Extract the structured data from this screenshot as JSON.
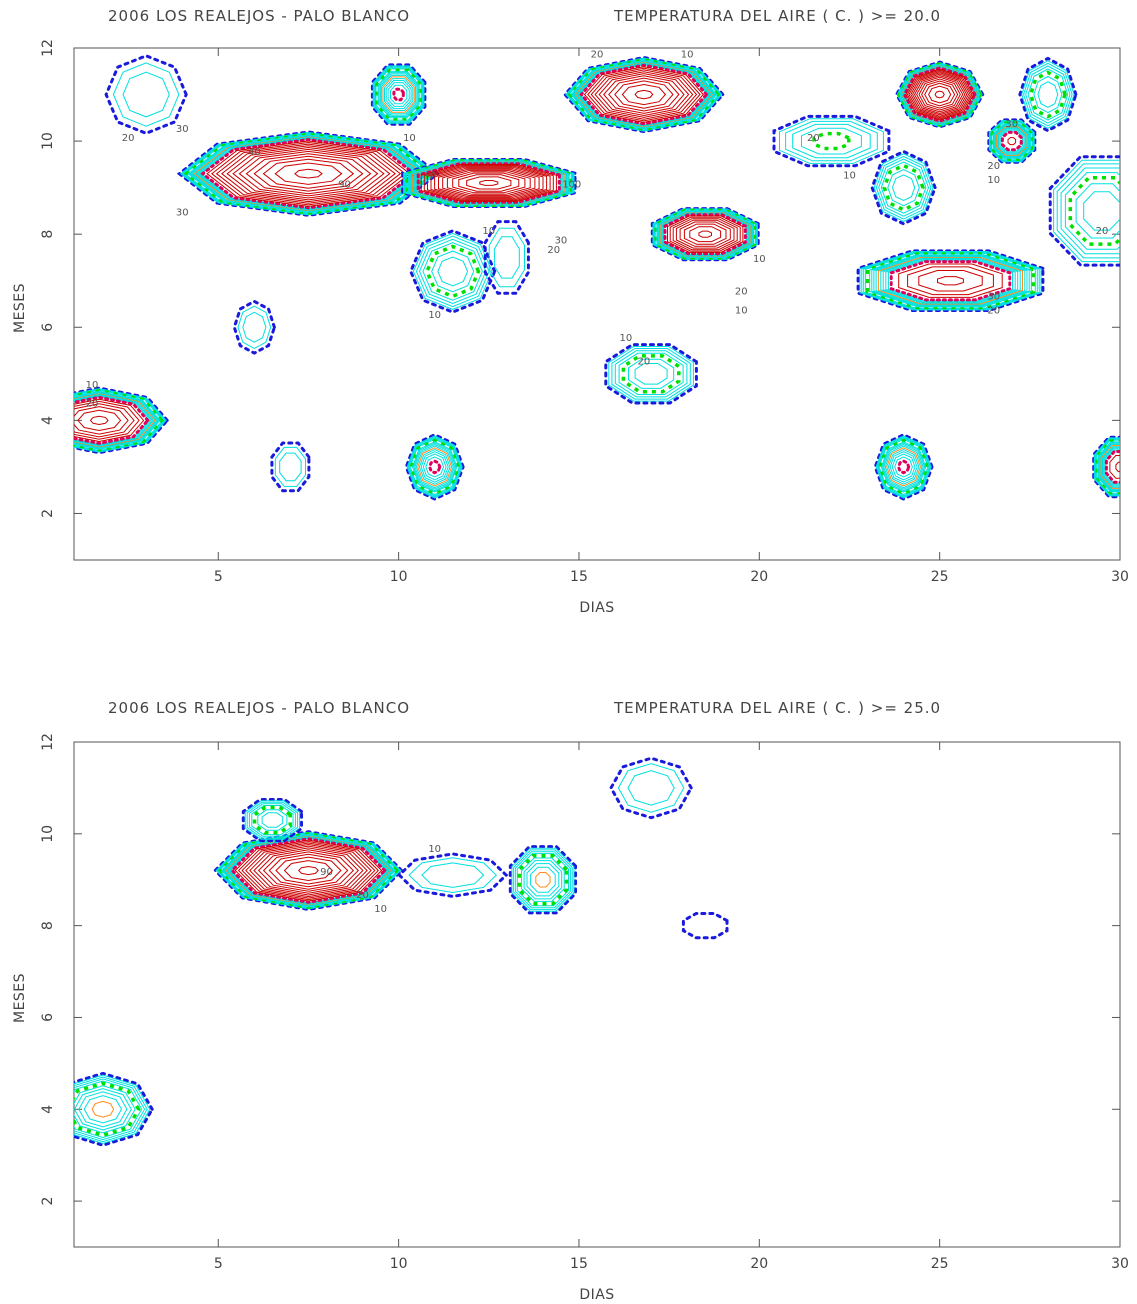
{
  "chart_data": [
    {
      "type": "contour",
      "title_left": "2006 LOS REALEJOS - PALO BLANCO",
      "title_right": "TEMPERATURA DEL AIRE (  C. )  >=  20.0",
      "xlabel": "DIAS",
      "ylabel": "MESES",
      "xlim": [
        1,
        30
      ],
      "ylim": [
        1,
        12
      ],
      "xticks": [
        5,
        10,
        15,
        20,
        25,
        30
      ],
      "yticks": [
        2,
        4,
        6,
        8,
        10,
        12
      ],
      "level_colors": {
        "10": "#1a1adc",
        "20": "#00e000",
        "30": "#ff8c1a",
        "40": "#e0005a",
        "outer": "#00e0e0",
        "inner": "#cc0000"
      },
      "peaks": [
        {
          "day": 7.5,
          "month": 9.3,
          "rx": 3.6,
          "ry": 0.9,
          "max": 100
        },
        {
          "day": 12.5,
          "month": 9.1,
          "rx": 2.6,
          "ry": 0.55,
          "max": 100
        },
        {
          "day": 16.8,
          "month": 11.0,
          "rx": 2.2,
          "ry": 0.8,
          "max": 90
        },
        {
          "day": 18.5,
          "month": 8.0,
          "rx": 1.6,
          "ry": 0.6,
          "max": 80
        },
        {
          "day": 25.0,
          "month": 11.0,
          "rx": 1.2,
          "ry": 0.7,
          "max": 100
        },
        {
          "day": 25.3,
          "month": 7.0,
          "rx": 2.8,
          "ry": 0.7,
          "max": 60
        },
        {
          "day": 1.7,
          "month": 4.0,
          "rx": 1.9,
          "ry": 0.7,
          "max": 70
        },
        {
          "day": 22.0,
          "month": 10.0,
          "rx": 1.8,
          "ry": 0.6,
          "max": 20
        },
        {
          "day": 3.0,
          "month": 11.0,
          "rx": 1.2,
          "ry": 0.9,
          "max": 15
        },
        {
          "day": 10.0,
          "month": 11.0,
          "rx": 0.8,
          "ry": 0.7,
          "max": 40
        },
        {
          "day": 6.0,
          "month": 6.0,
          "rx": 0.6,
          "ry": 0.6,
          "max": 15
        },
        {
          "day": 7.0,
          "month": 3.0,
          "rx": 0.6,
          "ry": 0.6,
          "max": 15
        },
        {
          "day": 11.0,
          "month": 3.0,
          "rx": 0.8,
          "ry": 0.7,
          "max": 40
        },
        {
          "day": 17.0,
          "month": 5.0,
          "rx": 1.4,
          "ry": 0.7,
          "max": 25
        },
        {
          "day": 24.0,
          "month": 3.0,
          "rx": 0.8,
          "ry": 0.7,
          "max": 40
        },
        {
          "day": 30.0,
          "month": 3.0,
          "rx": 0.8,
          "ry": 0.7,
          "max": 50
        },
        {
          "day": 24.0,
          "month": 9.0,
          "rx": 0.9,
          "ry": 0.8,
          "max": 25
        },
        {
          "day": 29.5,
          "month": 8.5,
          "rx": 1.6,
          "ry": 1.3,
          "max": 25
        },
        {
          "day": 28.0,
          "month": 11.0,
          "rx": 0.8,
          "ry": 0.8,
          "max": 25
        },
        {
          "day": 27.0,
          "month": 10.0,
          "rx": 0.7,
          "ry": 0.5,
          "max": 45
        },
        {
          "day": 11.5,
          "month": 7.2,
          "rx": 1.2,
          "ry": 0.9,
          "max": 25
        },
        {
          "day": 13.0,
          "month": 7.5,
          "rx": 0.7,
          "ry": 0.9,
          "max": 15
        }
      ],
      "contour_labels": [
        {
          "text": "10",
          "day": 10.3,
          "month": 10.0
        },
        {
          "text": "20",
          "day": 2.5,
          "month": 10.0
        },
        {
          "text": "30",
          "day": 4.0,
          "month": 10.2
        },
        {
          "text": "40",
          "day": 6.0,
          "month": 9.7
        },
        {
          "text": "90",
          "day": 8.5,
          "month": 9.0
        },
        {
          "text": "100",
          "day": 14.8,
          "month": 9.0
        },
        {
          "text": "10",
          "day": 18.0,
          "month": 11.8
        },
        {
          "text": "20",
          "day": 15.5,
          "month": 11.8
        },
        {
          "text": "20",
          "day": 21.5,
          "month": 10.0
        },
        {
          "text": "10",
          "day": 22.5,
          "month": 9.2
        },
        {
          "text": "30",
          "day": 27.0,
          "month": 10.3
        },
        {
          "text": "20",
          "day": 26.5,
          "month": 9.4
        },
        {
          "text": "10",
          "day": 26.5,
          "month": 9.1
        },
        {
          "text": "30",
          "day": 14.5,
          "month": 7.8
        },
        {
          "text": "20",
          "day": 14.3,
          "month": 7.6
        },
        {
          "text": "10",
          "day": 12.5,
          "month": 8.0
        },
        {
          "text": "10",
          "day": 20.0,
          "month": 7.4
        },
        {
          "text": "10",
          "day": 19.5,
          "month": 6.3
        },
        {
          "text": "20",
          "day": 19.5,
          "month": 6.7
        },
        {
          "text": "10",
          "day": 16.3,
          "month": 5.7
        },
        {
          "text": "20",
          "day": 16.8,
          "month": 5.2
        },
        {
          "text": "20",
          "day": 1.5,
          "month": 4.3
        },
        {
          "text": "10",
          "day": 1.5,
          "month": 4.7
        },
        {
          "text": "30",
          "day": 4.0,
          "month": 8.4
        },
        {
          "text": "20",
          "day": 29.5,
          "month": 8.0
        },
        {
          "text": "10",
          "day": 11.0,
          "month": 6.2
        },
        {
          "text": "30",
          "day": 26.5,
          "month": 6.6
        },
        {
          "text": "20",
          "day": 26.5,
          "month": 6.3
        }
      ]
    },
    {
      "type": "contour",
      "title_left": "2006 LOS REALEJOS - PALO BLANCO",
      "title_right": "TEMPERATURA DEL AIRE (  C. )  >=  25.0",
      "xlabel": "DIAS",
      "ylabel": "MESES",
      "xlim": [
        1,
        30
      ],
      "ylim": [
        1,
        12
      ],
      "xticks": [
        5,
        10,
        15,
        20,
        25,
        30
      ],
      "yticks": [
        2,
        4,
        6,
        8,
        10,
        12
      ],
      "level_colors": {
        "10": "#1a1adc",
        "20": "#00e000",
        "30": "#ff8c1a",
        "40": "#e0005a",
        "outer": "#00e0e0",
        "inner": "#cc0000"
      },
      "peaks": [
        {
          "day": 7.5,
          "month": 9.2,
          "rx": 2.6,
          "ry": 0.85,
          "max": 100
        },
        {
          "day": 6.5,
          "month": 10.3,
          "rx": 0.9,
          "ry": 0.5,
          "max": 25
        },
        {
          "day": 11.5,
          "month": 9.1,
          "rx": 1.6,
          "ry": 0.5,
          "max": 15
        },
        {
          "day": 14.0,
          "month": 9.0,
          "rx": 1.0,
          "ry": 0.8,
          "max": 30
        },
        {
          "day": 17.0,
          "month": 11.0,
          "rx": 1.2,
          "ry": 0.7,
          "max": 15
        },
        {
          "day": 18.5,
          "month": 8.0,
          "rx": 0.8,
          "ry": 0.35,
          "max": 11
        },
        {
          "day": 1.8,
          "month": 4.0,
          "rx": 1.4,
          "ry": 0.8,
          "max": 30
        }
      ],
      "contour_labels": [
        {
          "text": "10",
          "day": 11.0,
          "month": 9.6
        },
        {
          "text": "10",
          "day": 9.5,
          "month": 8.3
        },
        {
          "text": "90",
          "day": 8.0,
          "month": 9.1
        },
        {
          "text": "20",
          "day": 9.0,
          "month": 8.6
        }
      ]
    }
  ]
}
